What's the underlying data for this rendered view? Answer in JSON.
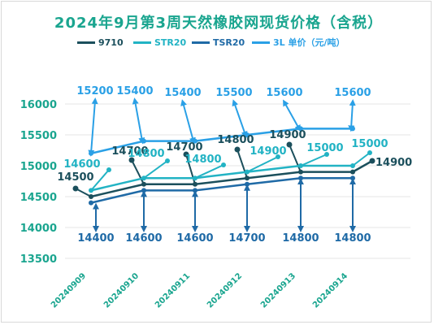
{
  "title": "2024年9月第3周天然橡胶网现货价格（含税）",
  "colors": {
    "title": "#1aa58f",
    "axis_text": "#1aa58f",
    "grid": "#e6e6e6"
  },
  "legend": [
    {
      "label": "9710",
      "color": "#1b4f5c"
    },
    {
      "label": "STR20",
      "color": "#22b3c4"
    },
    {
      "label": "TSR20",
      "color": "#1f6aa6"
    },
    {
      "label": "3L 单价（元/吨）",
      "color": "#2aa0e6"
    }
  ],
  "chart_data": {
    "type": "line",
    "title": "2024年9月第3周天然橡胶网现货价格（含税）",
    "xlabel": "",
    "ylabel": "",
    "ylim": [
      13500,
      16000
    ],
    "yticks": [
      13500,
      14000,
      14500,
      15000,
      15500,
      16000
    ],
    "categories": [
      "20240909",
      "20240910",
      "20240911",
      "20240912",
      "20240913",
      "20240914"
    ],
    "series": [
      {
        "name": "9710",
        "color": "#1b4f5c",
        "values": [
          14500,
          14700,
          14700,
          14800,
          14900,
          14900
        ],
        "last_value": 14900
      },
      {
        "name": "STR20",
        "color": "#22b3c4",
        "values": [
          14600,
          14800,
          14800,
          14900,
          15000,
          15000
        ],
        "last_value": 15000
      },
      {
        "name": "TSR20",
        "color": "#1f6aa6",
        "values": [
          14400,
          14600,
          14600,
          14700,
          14800,
          14800
        ]
      },
      {
        "name": "3L 单价（元/吨）",
        "color": "#2aa0e6",
        "values": [
          15200,
          15400,
          15400,
          15500,
          15600,
          15600
        ]
      }
    ],
    "grid": true,
    "legend_position": "top"
  }
}
